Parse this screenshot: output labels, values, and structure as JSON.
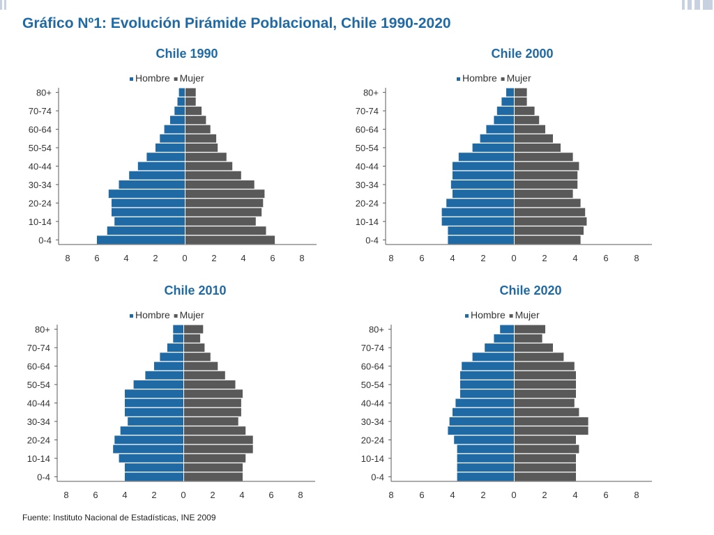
{
  "title": "Gráfico Nº1: Evolución Pirámide Poblacional, Chile 1990-2020",
  "source": "Fuente: Instituto Nacional de Estadísticas, INE 2009",
  "colors": {
    "title": "#1f6aa5",
    "hombre": "#1f6aa5",
    "mujer": "#595959",
    "axis": "#595959",
    "text": "#333333"
  },
  "chart_data": [
    {
      "type": "bar",
      "title": "Chile 1990",
      "categories": [
        "0-4",
        "5-9",
        "10-14",
        "15-19",
        "20-24",
        "25-29",
        "30-34",
        "35-39",
        "40-44",
        "45-49",
        "50-54",
        "55-59",
        "60-64",
        "65-69",
        "70-74",
        "75-79",
        "80+"
      ],
      "tick_labels": [
        "0-4",
        "10-14",
        "20-24",
        "30-34",
        "40-44",
        "50-54",
        "60-64",
        "70-74",
        "80+"
      ],
      "series": [
        {
          "name": "Hombre",
          "values": [
            6.0,
            5.3,
            4.8,
            5.0,
            5.0,
            5.2,
            4.5,
            3.8,
            3.2,
            2.6,
            2.0,
            1.7,
            1.4,
            1.0,
            0.7,
            0.5,
            0.4
          ]
        },
        {
          "name": "Mujer",
          "values": [
            6.1,
            5.5,
            4.8,
            5.2,
            5.3,
            5.4,
            4.7,
            3.8,
            3.2,
            2.8,
            2.2,
            2.1,
            1.7,
            1.4,
            1.1,
            0.7,
            0.7
          ]
        }
      ],
      "xticks": [
        "8",
        "6",
        "4",
        "2",
        "0",
        "2",
        "4",
        "6",
        "8"
      ],
      "xlim": [
        -8,
        8
      ],
      "legend": "top"
    },
    {
      "type": "bar",
      "title": "Chile 2000",
      "categories": [
        "0-4",
        "5-9",
        "10-14",
        "15-19",
        "20-24",
        "25-29",
        "30-34",
        "35-39",
        "40-44",
        "45-49",
        "50-54",
        "55-59",
        "60-64",
        "65-69",
        "70-74",
        "75-79",
        "80+"
      ],
      "tick_labels": [
        "0-4",
        "10-14",
        "20-24",
        "30-34",
        "40-44",
        "50-54",
        "60-64",
        "70-74",
        "80+"
      ],
      "series": [
        {
          "name": "Hombre",
          "values": [
            4.3,
            4.3,
            4.7,
            4.7,
            4.4,
            4.0,
            4.1,
            4.0,
            4.0,
            3.6,
            2.7,
            2.2,
            1.8,
            1.3,
            1.1,
            0.8,
            0.5
          ]
        },
        {
          "name": "Mujer",
          "values": [
            4.3,
            4.5,
            4.7,
            4.6,
            4.3,
            3.8,
            4.1,
            4.1,
            4.2,
            3.8,
            3.0,
            2.5,
            2.0,
            1.6,
            1.3,
            0.8,
            0.8
          ]
        }
      ],
      "xticks": [
        "8",
        "6",
        "4",
        "2",
        "0",
        "2",
        "4",
        "6",
        "8"
      ],
      "xlim": [
        -8,
        8
      ],
      "legend": "top"
    },
    {
      "type": "bar",
      "title": "Chile 2010",
      "categories": [
        "0-4",
        "5-9",
        "10-14",
        "15-19",
        "20-24",
        "25-29",
        "30-34",
        "35-39",
        "40-44",
        "45-49",
        "50-54",
        "55-59",
        "60-64",
        "65-69",
        "70-74",
        "75-79",
        "80+"
      ],
      "tick_labels": [
        "0-4",
        "10-14",
        "20-24",
        "30-34",
        "40-44",
        "50-54",
        "60-64",
        "70-74",
        "80+"
      ],
      "series": [
        {
          "name": "Hombre",
          "values": [
            4.0,
            4.0,
            4.4,
            4.8,
            4.7,
            4.3,
            3.8,
            4.0,
            4.0,
            4.0,
            3.4,
            2.6,
            2.0,
            1.6,
            1.1,
            0.7,
            0.7
          ]
        },
        {
          "name": "Mujer",
          "values": [
            4.0,
            4.0,
            4.2,
            4.7,
            4.7,
            4.2,
            3.7,
            3.9,
            3.9,
            4.0,
            3.5,
            2.8,
            2.3,
            1.8,
            1.4,
            1.1,
            1.3
          ]
        }
      ],
      "xticks": [
        "8",
        "6",
        "4",
        "2",
        "0",
        "2",
        "4",
        "6",
        "8"
      ],
      "xlim": [
        -8,
        8
      ],
      "legend": "top"
    },
    {
      "type": "bar",
      "title": "Chile 2020",
      "categories": [
        "0-4",
        "5-9",
        "10-14",
        "15-19",
        "20-24",
        "25-29",
        "30-34",
        "35-39",
        "40-44",
        "45-49",
        "50-54",
        "55-59",
        "60-64",
        "65-69",
        "70-74",
        "75-79",
        "80+"
      ],
      "tick_labels": [
        "0-4",
        "10-14",
        "20-24",
        "30-34",
        "40-44",
        "50-54",
        "60-64",
        "70-74",
        "80+"
      ],
      "series": [
        {
          "name": "Hombre",
          "values": [
            3.7,
            3.7,
            3.7,
            3.7,
            3.9,
            4.3,
            4.2,
            4.0,
            3.8,
            3.5,
            3.5,
            3.5,
            3.4,
            2.7,
            1.9,
            1.3,
            0.9
          ]
        },
        {
          "name": "Mujer",
          "values": [
            4.0,
            4.0,
            4.0,
            4.2,
            4.0,
            4.8,
            4.8,
            4.2,
            3.9,
            4.0,
            4.0,
            4.0,
            3.9,
            3.2,
            2.5,
            1.8,
            2.0
          ]
        }
      ],
      "xticks": [
        "8",
        "6",
        "4",
        "2",
        "0",
        "2",
        "4",
        "6",
        "8"
      ],
      "xlim": [
        -8,
        8
      ],
      "legend": "top"
    }
  ]
}
